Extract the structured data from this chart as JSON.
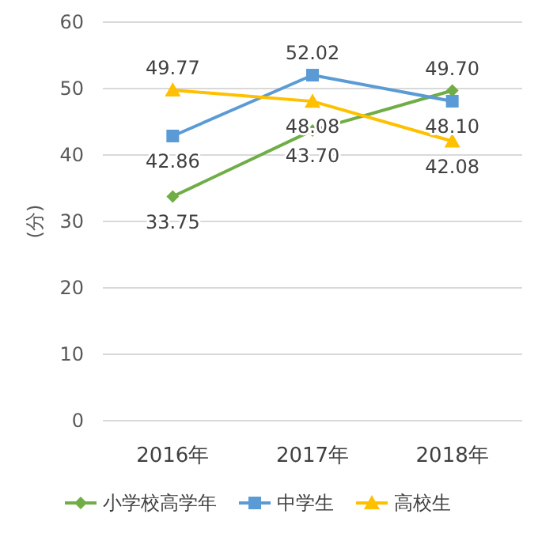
{
  "chart_data": {
    "type": "line",
    "ylabel": "(分)",
    "categories": [
      "2016年",
      "2017年",
      "2018年"
    ],
    "series": [
      {
        "name": "小学校高学年",
        "color": "#70ad47",
        "values": [
          33.75,
          43.7,
          49.7
        ],
        "value_labels": [
          "33.75",
          "43.70",
          "49.70"
        ],
        "marker": "diamond"
      },
      {
        "name": "中学生",
        "color": "#5b9bd5",
        "values": [
          42.86,
          52.02,
          48.1
        ],
        "value_labels": [
          "42.86",
          "52.02",
          "48.10"
        ],
        "marker": "square"
      },
      {
        "name": "高校生",
        "color": "#ffc000",
        "values": [
          49.77,
          48.08,
          42.08
        ],
        "value_labels": [
          "49.77",
          "48.08",
          "42.08"
        ],
        "marker": "triangle"
      }
    ],
    "ylim": [
      0,
      60
    ],
    "yticks": [
      0,
      10,
      20,
      30,
      40,
      50,
      60
    ],
    "grid": "y",
    "legend": "bottom"
  }
}
